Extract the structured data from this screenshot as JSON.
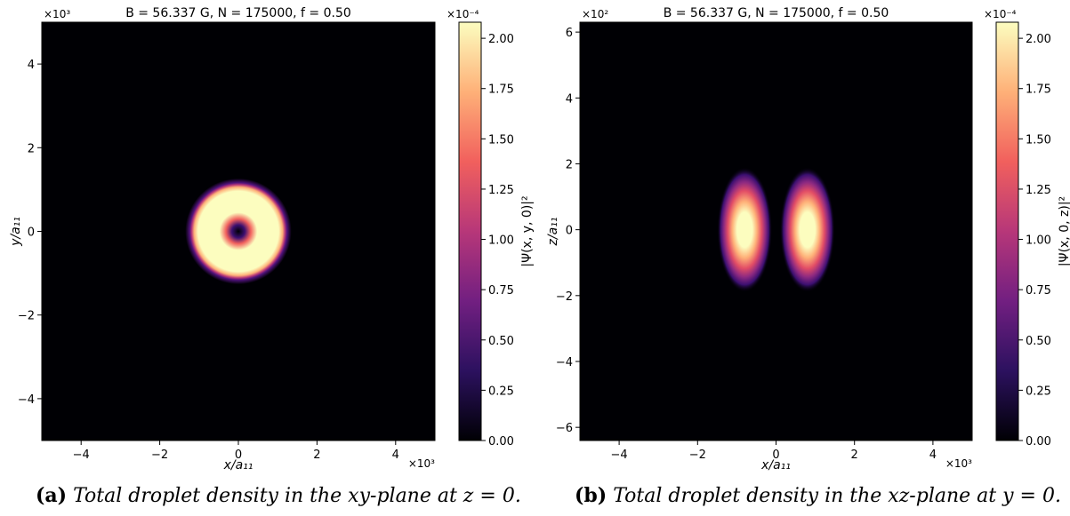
{
  "chart_data": [
    {
      "type": "heatmap",
      "panel_label": "(a)",
      "caption": "Total droplet density in the xy-plane at z = 0.",
      "title": "B = 56.337 G, N = 175000, f = 0.50",
      "xlabel": "x/a₁₁",
      "ylabel": "y/a₁₁",
      "x_multiplier": "×10³",
      "y_multiplier": "×10³",
      "xlim": [
        -5,
        5
      ],
      "ylim": [
        -5,
        5
      ],
      "xticks": [
        -4,
        -2,
        0,
        2,
        4
      ],
      "yticks": [
        -4,
        -2,
        0,
        2,
        4
      ],
      "xtick_labels": [
        "−4",
        "−2",
        "0",
        "2",
        "4"
      ],
      "ytick_labels": [
        "−4",
        "−2",
        "0",
        "2",
        "4"
      ],
      "colorbar_label": "|Ψ(x, y, 0)|²",
      "colorbar_multiplier": "×10⁻⁴",
      "colorbar_range": [
        0,
        2.08
      ],
      "colorbar_ticks": [
        "0.00",
        "0.25",
        "0.50",
        "0.75",
        "1.00",
        "1.25",
        "1.50",
        "1.75",
        "2.00"
      ],
      "colormap": "magma",
      "feature": {
        "shape": "ring",
        "center": [
          0,
          0
        ],
        "inner_radius": 0.3,
        "outer_radius": 1.25,
        "peak_value": 2.05
      }
    },
    {
      "type": "heatmap",
      "panel_label": "(b)",
      "caption": "Total droplet density in the xz-plane at y = 0.",
      "title": "B = 56.337 G, N = 175000, f = 0.50",
      "xlabel": "x/a₁₁",
      "ylabel": "z/a₁₁",
      "x_multiplier": "×10³",
      "y_multiplier": "×10²",
      "xlim": [
        -5,
        5
      ],
      "ylim": [
        -6.4,
        6.3
      ],
      "xticks": [
        -4,
        -2,
        0,
        2,
        4
      ],
      "yticks": [
        -6,
        -4,
        -2,
        0,
        2,
        4,
        6
      ],
      "xtick_labels": [
        "−4",
        "−2",
        "0",
        "2",
        "4"
      ],
      "ytick_labels": [
        "−6",
        "−4",
        "−2",
        "0",
        "2",
        "4",
        "6"
      ],
      "colorbar_label": "|Ψ(x, 0, z)|²",
      "colorbar_multiplier": "×10⁻⁴",
      "colorbar_range": [
        0,
        2.08
      ],
      "colorbar_ticks": [
        "0.00",
        "0.25",
        "0.50",
        "0.75",
        "1.00",
        "1.25",
        "1.50",
        "1.75",
        "2.00"
      ],
      "colormap": "magma",
      "feature": {
        "shape": "two-lobes",
        "lobe_centers_x": [
          -0.8,
          0.8
        ],
        "lobe_half_width_x": 0.7,
        "lobe_half_height_z": 1.9,
        "peak_value": 2.05
      }
    }
  ],
  "colors": {
    "background": "#000004",
    "magma_stops": [
      "#000004",
      "#2c115f",
      "#721f81",
      "#b73779",
      "#f1605d",
      "#feb078",
      "#fcfdbf"
    ]
  }
}
